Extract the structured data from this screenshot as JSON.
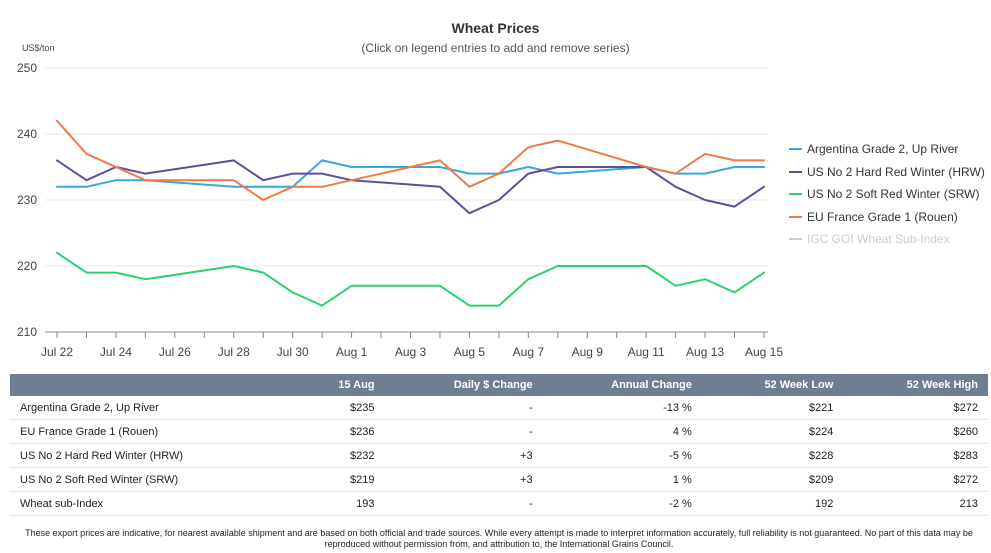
{
  "chart_data": {
    "type": "line",
    "title": "Wheat Prices",
    "subtitle": "(Click on legend entries to add and remove series)",
    "y_unit": "US$/ton",
    "ylim": [
      210,
      250
    ],
    "y_ticks": [
      210,
      220,
      230,
      240,
      250
    ],
    "x_start": "Jul 22",
    "x_categories": [
      "Jul 22",
      "Jul 23",
      "Jul 24",
      "Jul 25",
      "Jul 26",
      "Jul 27",
      "Jul 28",
      "Jul 29",
      "Jul 30",
      "Jul 31",
      "Aug 1",
      "Aug 2",
      "Aug 3",
      "Aug 4",
      "Aug 5",
      "Aug 6",
      "Aug 7",
      "Aug 8",
      "Aug 9",
      "Aug 10",
      "Aug 11",
      "Aug 12",
      "Aug 13",
      "Aug 14",
      "Aug 15"
    ],
    "x_tick_labels": [
      "Jul 22",
      "Jul 24",
      "Jul 26",
      "Jul 28",
      "Jul 30",
      "Aug 1",
      "Aug 3",
      "Aug 5",
      "Aug 7",
      "Aug 9",
      "Aug 11",
      "Aug 13",
      "Aug 15"
    ],
    "grid": "horizontal",
    "legend_position": "right",
    "series": [
      {
        "name": "Argentina Grade 2, Up River",
        "color": "#3aa6d9",
        "visible": true,
        "points": [
          [
            "Jul 22",
            232
          ],
          [
            "Jul 23",
            232
          ],
          [
            "Jul 24",
            233
          ],
          [
            "Jul 25",
            233
          ],
          [
            "Jul 28",
            232
          ],
          [
            "Jul 29",
            232
          ],
          [
            "Jul 30",
            232
          ],
          [
            "Jul 31",
            236
          ],
          [
            "Aug 1",
            235
          ],
          [
            "Aug 2",
            235
          ],
          [
            "Aug 4",
            235
          ],
          [
            "Aug 5",
            234
          ],
          [
            "Aug 6",
            234
          ],
          [
            "Aug 7",
            235
          ],
          [
            "Aug 8",
            234
          ],
          [
            "Aug 11",
            235
          ],
          [
            "Aug 12",
            234
          ],
          [
            "Aug 13",
            234
          ],
          [
            "Aug 14",
            235
          ],
          [
            "Aug 15",
            235
          ]
        ]
      },
      {
        "name": "US No 2 Hard Red Winter (HRW)",
        "color": "#5b4ea2",
        "visible": true,
        "points": [
          [
            "Jul 22",
            236
          ],
          [
            "Jul 23",
            233
          ],
          [
            "Jul 24",
            235
          ],
          [
            "Jul 25",
            234
          ],
          [
            "Jul 28",
            236
          ],
          [
            "Jul 29",
            233
          ],
          [
            "Jul 30",
            234
          ],
          [
            "Jul 31",
            234
          ],
          [
            "Aug 1",
            233
          ],
          [
            "Aug 4",
            232
          ],
          [
            "Aug 5",
            228
          ],
          [
            "Aug 6",
            230
          ],
          [
            "Aug 7",
            234
          ],
          [
            "Aug 8",
            235
          ],
          [
            "Aug 11",
            235
          ],
          [
            "Aug 12",
            232
          ],
          [
            "Aug 13",
            230
          ],
          [
            "Aug 14",
            229
          ],
          [
            "Aug 15",
            232
          ]
        ]
      },
      {
        "name": "US No 2 Soft Red Winter (SRW)",
        "color": "#2ed06e",
        "visible": true,
        "points": [
          [
            "Jul 22",
            222
          ],
          [
            "Jul 23",
            219
          ],
          [
            "Jul 24",
            219
          ],
          [
            "Jul 25",
            218
          ],
          [
            "Jul 28",
            220
          ],
          [
            "Jul 29",
            219
          ],
          [
            "Jul 30",
            216
          ],
          [
            "Jul 31",
            214
          ],
          [
            "Aug 1",
            217
          ],
          [
            "Aug 4",
            217
          ],
          [
            "Aug 5",
            214
          ],
          [
            "Aug 6",
            214
          ],
          [
            "Aug 7",
            218
          ],
          [
            "Aug 8",
            220
          ],
          [
            "Aug 11",
            220
          ],
          [
            "Aug 12",
            217
          ],
          [
            "Aug 13",
            218
          ],
          [
            "Aug 14",
            216
          ],
          [
            "Aug 15",
            219
          ]
        ]
      },
      {
        "name": "EU France Grade 1 (Rouen)",
        "color": "#ee7a45",
        "visible": true,
        "points": [
          [
            "Jul 22",
            242
          ],
          [
            "Jul 23",
            237
          ],
          [
            "Jul 24",
            235
          ],
          [
            "Jul 25",
            233
          ],
          [
            "Jul 28",
            233
          ],
          [
            "Jul 29",
            230
          ],
          [
            "Jul 30",
            232
          ],
          [
            "Jul 31",
            232
          ],
          [
            "Aug 4",
            236
          ],
          [
            "Aug 5",
            232
          ],
          [
            "Aug 6",
            234
          ],
          [
            "Aug 7",
            238
          ],
          [
            "Aug 8",
            239
          ],
          [
            "Aug 11",
            235
          ],
          [
            "Aug 12",
            234
          ],
          [
            "Aug 13",
            237
          ],
          [
            "Aug 14",
            236
          ],
          [
            "Aug 15",
            236
          ]
        ]
      },
      {
        "name": "IGC GOI Wheat Sub-Index",
        "color": "#cccccc",
        "visible": false,
        "points": []
      }
    ]
  },
  "table": {
    "headers": [
      "",
      "15 Aug",
      "Daily $ Change",
      "Annual Change",
      "52 Week Low",
      "52 Week High"
    ],
    "rows": [
      {
        "name": "Argentina Grade 2, Up River",
        "price": "$235",
        "daily": "-",
        "annual": "-13 %",
        "annual_sign": "neg",
        "low": "$221",
        "high": "$272"
      },
      {
        "name": "EU France Grade 1 (Rouen)",
        "price": "$236",
        "daily": "-",
        "annual": "4 %",
        "annual_sign": "pos",
        "low": "$224",
        "high": "$260"
      },
      {
        "name": "US No 2 Hard Red Winter (HRW)",
        "price": "$232",
        "daily": "+3",
        "annual": "-5 %",
        "annual_sign": "neg",
        "low": "$228",
        "high": "$283"
      },
      {
        "name": "US No 2 Soft Red Winter (SRW)",
        "price": "$219",
        "daily": "+3",
        "annual": "1 %",
        "annual_sign": "pos",
        "low": "$209",
        "high": "$272"
      },
      {
        "name": "Wheat sub-Index",
        "price": "193",
        "daily": "-",
        "annual": "-2 %",
        "annual_sign": "neg",
        "low": "192",
        "high": "213"
      }
    ]
  },
  "disclaimer": "These export prices are indicative, for nearest available shipment and are based on both official and trade sources. While every attempt is made to interpret information accurately, full reliability is not guaranteed. No part of this data may be reproduced without permission from, and attribution to, the International Grains Council."
}
